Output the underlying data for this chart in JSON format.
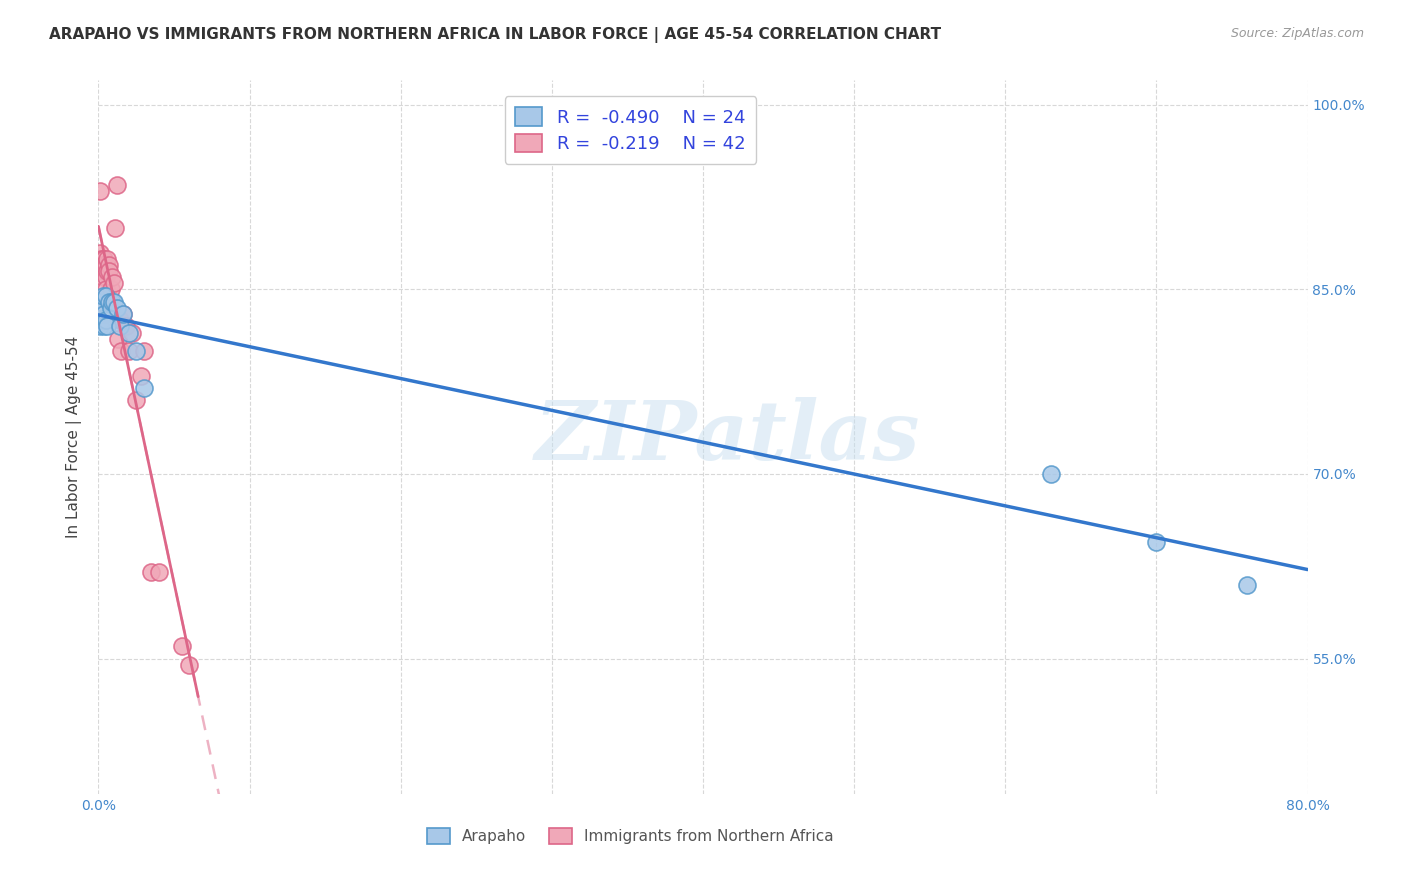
{
  "title": "ARAPAHO VS IMMIGRANTS FROM NORTHERN AFRICA IN LABOR FORCE | AGE 45-54 CORRELATION CHART",
  "source": "Source: ZipAtlas.com",
  "ylabel": "In Labor Force | Age 45-54",
  "xlim": [
    0.0,
    0.8
  ],
  "ylim": [
    0.44,
    1.02
  ],
  "yticks": [
    0.55,
    0.7,
    0.85,
    1.0
  ],
  "ytick_labels": [
    "55.0%",
    "70.0%",
    "85.0%",
    "100.0%"
  ],
  "xtick_positions": [
    0.0,
    0.1,
    0.2,
    0.3,
    0.4,
    0.5,
    0.6,
    0.7,
    0.8
  ],
  "xtick_labels": [
    "0.0%",
    "",
    "",
    "",
    "",
    "",
    "",
    "",
    "80.0%"
  ],
  "legend_r1": "-0.490",
  "legend_n1": "24",
  "legend_r2": "-0.219",
  "legend_n2": "42",
  "color_arapaho_fill": "#a8c8e8",
  "color_arapaho_edge": "#5599cc",
  "color_africa_fill": "#f0a8b8",
  "color_africa_edge": "#dd6688",
  "color_arapaho_line": "#3377cc",
  "color_africa_line": "#dd6688",
  "background": "#ffffff",
  "grid_color": "#d8d8d8",
  "arapaho_x": [
    0.001,
    0.001,
    0.002,
    0.002,
    0.003,
    0.003,
    0.004,
    0.004,
    0.005,
    0.005,
    0.006,
    0.007,
    0.008,
    0.009,
    0.01,
    0.012,
    0.014,
    0.016,
    0.02,
    0.025,
    0.03,
    0.63,
    0.7,
    0.76
  ],
  "arapaho_y": [
    0.83,
    0.82,
    0.835,
    0.84,
    0.825,
    0.845,
    0.83,
    0.82,
    0.825,
    0.845,
    0.82,
    0.84,
    0.835,
    0.84,
    0.84,
    0.835,
    0.82,
    0.83,
    0.815,
    0.8,
    0.77,
    0.7,
    0.645,
    0.61
  ],
  "africa_x": [
    0.001,
    0.001,
    0.001,
    0.002,
    0.002,
    0.002,
    0.002,
    0.003,
    0.003,
    0.003,
    0.003,
    0.003,
    0.004,
    0.004,
    0.004,
    0.004,
    0.005,
    0.005,
    0.005,
    0.006,
    0.006,
    0.007,
    0.007,
    0.008,
    0.009,
    0.01,
    0.011,
    0.012,
    0.013,
    0.014,
    0.015,
    0.016,
    0.018,
    0.02,
    0.022,
    0.025,
    0.028,
    0.03,
    0.035,
    0.04,
    0.055,
    0.06
  ],
  "africa_y": [
    0.87,
    0.88,
    0.93,
    0.87,
    0.875,
    0.87,
    0.865,
    0.875,
    0.87,
    0.865,
    0.87,
    0.86,
    0.875,
    0.87,
    0.865,
    0.87,
    0.87,
    0.86,
    0.85,
    0.875,
    0.865,
    0.87,
    0.865,
    0.85,
    0.86,
    0.855,
    0.9,
    0.935,
    0.81,
    0.825,
    0.8,
    0.83,
    0.82,
    0.8,
    0.815,
    0.76,
    0.78,
    0.8,
    0.62,
    0.62,
    0.56,
    0.545
  ],
  "title_fontsize": 11,
  "axis_label_fontsize": 11,
  "tick_fontsize": 10,
  "legend_fontsize": 13
}
